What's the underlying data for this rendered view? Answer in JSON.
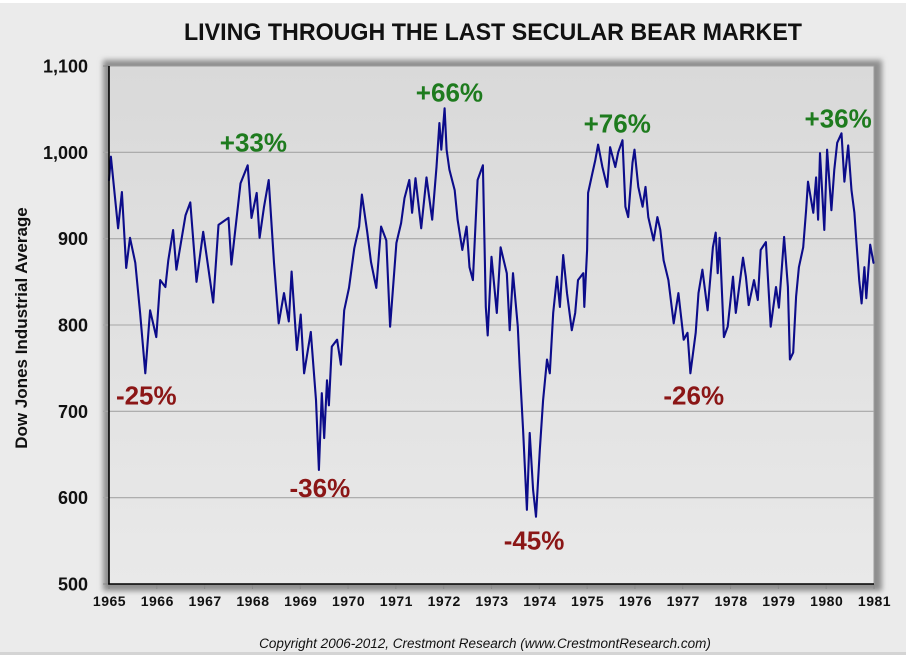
{
  "chart_data": {
    "type": "line",
    "title": "LIVING THROUGH THE LAST SECULAR BEAR MARKET",
    "xlabel": "",
    "ylabel": "Dow Jones Industrial Average",
    "xlim": [
      1965,
      1981
    ],
    "ylim": [
      500,
      1100
    ],
    "grid": "horizontal",
    "legend": "none",
    "x_ticks": [
      {
        "value": 1965,
        "label": "1965"
      },
      {
        "value": 1966,
        "label": "1966"
      },
      {
        "value": 1967,
        "label": "1967"
      },
      {
        "value": 1968,
        "label": "1968"
      },
      {
        "value": 1969,
        "label": "1969"
      },
      {
        "value": 1970,
        "label": "1970"
      },
      {
        "value": 1971,
        "label": "1971"
      },
      {
        "value": 1972,
        "label": "1972"
      },
      {
        "value": 1973,
        "label": "1973"
      },
      {
        "value": 1974,
        "label": "1974"
      },
      {
        "value": 1975,
        "label": "1975"
      },
      {
        "value": 1976,
        "label": "1976"
      },
      {
        "value": 1977,
        "label": "1977"
      },
      {
        "value": 1978,
        "label": "1978"
      },
      {
        "value": 1979,
        "label": "1979"
      },
      {
        "value": 1980,
        "label": "1980"
      },
      {
        "value": 1981,
        "label": "1981"
      }
    ],
    "y_ticks": [
      {
        "value": 500,
        "label": "500"
      },
      {
        "value": 600,
        "label": "600"
      },
      {
        "value": 700,
        "label": "700"
      },
      {
        "value": 800,
        "label": "800"
      },
      {
        "value": 900,
        "label": "900"
      },
      {
        "value": 1000,
        "label": "1,000"
      },
      {
        "value": 1100,
        "label": "1,100"
      }
    ],
    "colors": {
      "line": "#0c0c8a",
      "gain": "#1e7b1e",
      "decline": "#8b1616",
      "grid": "#a6a6a6"
    },
    "series": [
      {
        "name": "Dow Jones Industrial Average",
        "points": [
          [
            1965.0,
            968
          ],
          [
            1965.04,
            995
          ],
          [
            1965.19,
            912
          ],
          [
            1965.27,
            954
          ],
          [
            1965.36,
            866
          ],
          [
            1965.44,
            901
          ],
          [
            1965.55,
            872
          ],
          [
            1965.65,
            814
          ],
          [
            1965.76,
            744
          ],
          [
            1965.86,
            817
          ],
          [
            1965.99,
            786
          ],
          [
            1966.07,
            852
          ],
          [
            1966.18,
            844
          ],
          [
            1966.24,
            875
          ],
          [
            1966.34,
            910
          ],
          [
            1966.41,
            864
          ],
          [
            1966.6,
            927
          ],
          [
            1966.7,
            942
          ],
          [
            1966.83,
            850
          ],
          [
            1966.97,
            908
          ],
          [
            1967.18,
            826
          ],
          [
            1967.29,
            916
          ],
          [
            1967.5,
            924
          ],
          [
            1967.56,
            870
          ],
          [
            1967.75,
            964
          ],
          [
            1967.9,
            985
          ],
          [
            1967.98,
            924
          ],
          [
            1968.09,
            953
          ],
          [
            1968.15,
            901
          ],
          [
            1968.24,
            936
          ],
          [
            1968.34,
            968
          ],
          [
            1968.45,
            872
          ],
          [
            1968.55,
            802
          ],
          [
            1968.66,
            837
          ],
          [
            1968.76,
            804
          ],
          [
            1968.82,
            862
          ],
          [
            1968.93,
            771
          ],
          [
            1969.01,
            812
          ],
          [
            1969.08,
            744
          ],
          [
            1969.22,
            792
          ],
          [
            1969.33,
            713
          ],
          [
            1969.39,
            632
          ],
          [
            1969.45,
            721
          ],
          [
            1969.5,
            669
          ],
          [
            1969.56,
            736
          ],
          [
            1969.6,
            707
          ],
          [
            1969.66,
            775
          ],
          [
            1969.77,
            783
          ],
          [
            1969.85,
            754
          ],
          [
            1969.92,
            817
          ],
          [
            1970.02,
            843
          ],
          [
            1970.13,
            889
          ],
          [
            1970.23,
            914
          ],
          [
            1970.29,
            951
          ],
          [
            1970.4,
            908
          ],
          [
            1970.48,
            873
          ],
          [
            1970.59,
            843
          ],
          [
            1970.69,
            914
          ],
          [
            1970.8,
            898
          ],
          [
            1970.88,
            798
          ],
          [
            1971.01,
            895
          ],
          [
            1971.11,
            918
          ],
          [
            1971.18,
            947
          ],
          [
            1971.28,
            968
          ],
          [
            1971.34,
            930
          ],
          [
            1971.41,
            970
          ],
          [
            1971.53,
            912
          ],
          [
            1971.64,
            971
          ],
          [
            1971.76,
            922
          ],
          [
            1971.85,
            983
          ],
          [
            1971.91,
            1034
          ],
          [
            1971.95,
            1003
          ],
          [
            1972.02,
            1051
          ],
          [
            1972.06,
            1003
          ],
          [
            1972.12,
            980
          ],
          [
            1972.23,
            956
          ],
          [
            1972.29,
            922
          ],
          [
            1972.39,
            887
          ],
          [
            1972.48,
            914
          ],
          [
            1972.54,
            867
          ],
          [
            1972.61,
            852
          ],
          [
            1972.71,
            968
          ],
          [
            1972.82,
            985
          ],
          [
            1972.88,
            821
          ],
          [
            1972.92,
            788
          ],
          [
            1973.0,
            879
          ],
          [
            1973.11,
            814
          ],
          [
            1973.19,
            890
          ],
          [
            1973.32,
            860
          ],
          [
            1973.38,
            794
          ],
          [
            1973.45,
            860
          ],
          [
            1973.55,
            798
          ],
          [
            1973.59,
            751
          ],
          [
            1973.66,
            678
          ],
          [
            1973.74,
            586
          ],
          [
            1973.8,
            675
          ],
          [
            1973.87,
            609
          ],
          [
            1973.93,
            578
          ],
          [
            1974.01,
            655
          ],
          [
            1974.08,
            713
          ],
          [
            1974.16,
            760
          ],
          [
            1974.22,
            744
          ],
          [
            1974.29,
            814
          ],
          [
            1974.37,
            856
          ],
          [
            1974.43,
            821
          ],
          [
            1974.5,
            881
          ],
          [
            1974.58,
            837
          ],
          [
            1974.68,
            794
          ],
          [
            1974.75,
            814
          ],
          [
            1974.81,
            852
          ],
          [
            1974.92,
            860
          ],
          [
            1974.94,
            821
          ],
          [
            1975.0,
            887
          ],
          [
            1975.02,
            953
          ],
          [
            1975.11,
            976
          ],
          [
            1975.17,
            991
          ],
          [
            1975.23,
            1009
          ],
          [
            1975.32,
            983
          ],
          [
            1975.42,
            960
          ],
          [
            1975.48,
            1006
          ],
          [
            1975.59,
            983
          ],
          [
            1975.65,
            1000
          ],
          [
            1975.74,
            1014
          ],
          [
            1975.8,
            937
          ],
          [
            1975.86,
            925
          ],
          [
            1975.95,
            988
          ],
          [
            1975.99,
            1003
          ],
          [
            1976.07,
            960
          ],
          [
            1976.16,
            937
          ],
          [
            1976.22,
            960
          ],
          [
            1976.28,
            925
          ],
          [
            1976.39,
            898
          ],
          [
            1976.47,
            925
          ],
          [
            1976.53,
            910
          ],
          [
            1976.6,
            875
          ],
          [
            1976.7,
            852
          ],
          [
            1976.81,
            802
          ],
          [
            1976.91,
            837
          ],
          [
            1977.02,
            783
          ],
          [
            1977.1,
            791
          ],
          [
            1977.16,
            744
          ],
          [
            1977.27,
            791
          ],
          [
            1977.33,
            837
          ],
          [
            1977.41,
            864
          ],
          [
            1977.52,
            817
          ],
          [
            1977.63,
            890
          ],
          [
            1977.69,
            907
          ],
          [
            1977.73,
            860
          ],
          [
            1977.77,
            901
          ],
          [
            1977.86,
            786
          ],
          [
            1977.94,
            798
          ],
          [
            1978.05,
            856
          ],
          [
            1978.11,
            814
          ],
          [
            1978.26,
            878
          ],
          [
            1978.32,
            856
          ],
          [
            1978.38,
            823
          ],
          [
            1978.49,
            852
          ],
          [
            1978.57,
            829
          ],
          [
            1978.63,
            887
          ],
          [
            1978.74,
            896
          ],
          [
            1978.84,
            798
          ],
          [
            1978.95,
            844
          ],
          [
            1979.01,
            820
          ],
          [
            1979.12,
            902
          ],
          [
            1979.2,
            844
          ],
          [
            1979.24,
            760
          ],
          [
            1979.31,
            768
          ],
          [
            1979.37,
            833
          ],
          [
            1979.43,
            867
          ],
          [
            1979.52,
            890
          ],
          [
            1979.58,
            933
          ],
          [
            1979.62,
            966
          ],
          [
            1979.73,
            930
          ],
          [
            1979.79,
            971
          ],
          [
            1979.83,
            922
          ],
          [
            1979.87,
            999
          ],
          [
            1979.96,
            910
          ],
          [
            1980.02,
            1003
          ],
          [
            1980.11,
            933
          ],
          [
            1980.17,
            980
          ],
          [
            1980.23,
            1011
          ],
          [
            1980.32,
            1022
          ],
          [
            1980.38,
            966
          ],
          [
            1980.46,
            1008
          ],
          [
            1980.53,
            956
          ],
          [
            1980.59,
            930
          ],
          [
            1980.63,
            898
          ],
          [
            1980.69,
            852
          ],
          [
            1980.74,
            825
          ],
          [
            1980.8,
            867
          ],
          [
            1980.84,
            831
          ],
          [
            1980.92,
            893
          ],
          [
            1980.99,
            872
          ]
        ]
      }
    ],
    "annotations": [
      {
        "text": "-25%",
        "x": 1965.78,
        "y": 719,
        "type": "decline"
      },
      {
        "text": "+33%",
        "x": 1968.02,
        "y": 1012,
        "type": "gain"
      },
      {
        "text": "-36%",
        "x": 1969.41,
        "y": 612,
        "type": "decline"
      },
      {
        "text": "+66%",
        "x": 1972.12,
        "y": 1070,
        "type": "gain"
      },
      {
        "text": "-45%",
        "x": 1973.89,
        "y": 551,
        "type": "decline"
      },
      {
        "text": "+76%",
        "x": 1975.63,
        "y": 1034,
        "type": "gain"
      },
      {
        "text": "-26%",
        "x": 1977.23,
        "y": 719,
        "type": "decline"
      },
      {
        "text": "+36%",
        "x": 1980.25,
        "y": 1040,
        "type": "gain"
      }
    ]
  },
  "footer": {
    "copyright": "Copyright 2006-2012, Crestmont Research (www.CrestmontResearch.com)"
  }
}
